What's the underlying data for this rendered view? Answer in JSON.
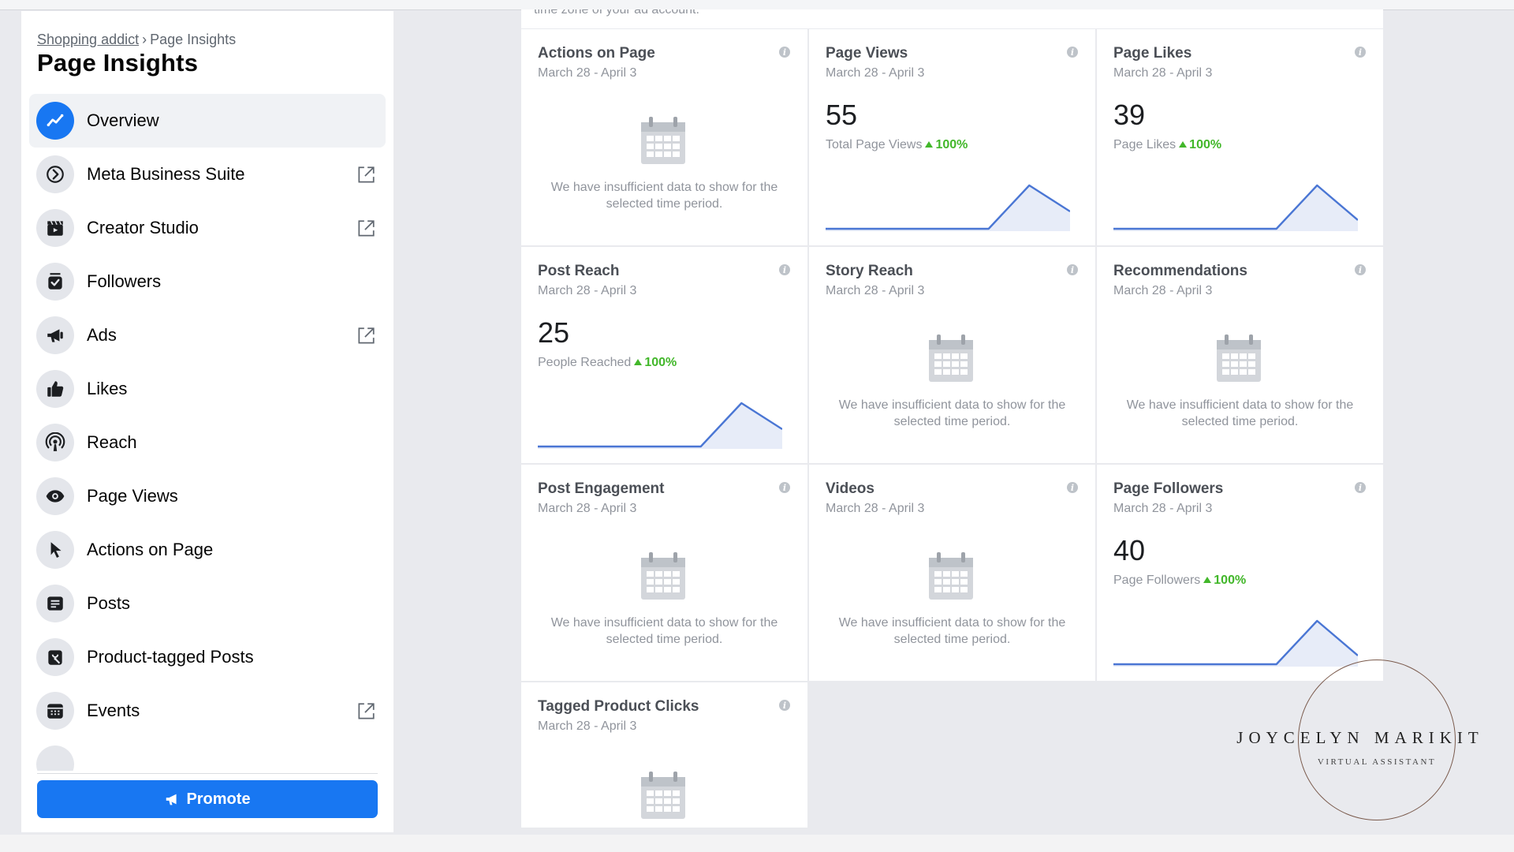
{
  "breadcrumb": {
    "parent": "Shopping addict",
    "separator": "›",
    "current": "Page Insights"
  },
  "page_title": "Page Insights",
  "sidebar": {
    "items": [
      {
        "label": "Overview",
        "icon": "chart-line-icon",
        "active": true,
        "external": false
      },
      {
        "label": "Meta Business Suite",
        "icon": "meta-business-suite-icon",
        "active": false,
        "external": true
      },
      {
        "label": "Creator Studio",
        "icon": "clapperboard-icon",
        "active": false,
        "external": true
      },
      {
        "label": "Followers",
        "icon": "followers-icon",
        "active": false,
        "external": false
      },
      {
        "label": "Ads",
        "icon": "megaphone-icon",
        "active": false,
        "external": true
      },
      {
        "label": "Likes",
        "icon": "thumbs-up-icon",
        "active": false,
        "external": false
      },
      {
        "label": "Reach",
        "icon": "broadcast-icon",
        "active": false,
        "external": false
      },
      {
        "label": "Page Views",
        "icon": "eye-icon",
        "active": false,
        "external": false
      },
      {
        "label": "Actions on Page",
        "icon": "cursor-icon",
        "active": false,
        "external": false
      },
      {
        "label": "Posts",
        "icon": "posts-icon",
        "active": false,
        "external": false
      },
      {
        "label": "Product-tagged Posts",
        "icon": "shopping-bag-icon",
        "active": false,
        "external": false
      },
      {
        "label": "Events",
        "icon": "calendar-icon",
        "active": false,
        "external": true
      }
    ],
    "promote_label": "Promote"
  },
  "top_strip_text": "time zone of your ad account.",
  "date_range": "March 28 - April 3",
  "nodata_text": "We have insufficient data to show for the selected time period.",
  "cards": [
    {
      "title": "Actions on Page",
      "date": "March 28 - April 3",
      "has_data": false
    },
    {
      "title": "Page Views",
      "date": "March 28 - April 3",
      "has_data": true,
      "value": "55",
      "metric": "Total Page Views",
      "delta": "100%",
      "trend": [
        0,
        0,
        0,
        0,
        0,
        1,
        0.4
      ]
    },
    {
      "title": "Page Likes",
      "date": "March 28 - April 3",
      "has_data": true,
      "value": "39",
      "metric": "Page Likes",
      "delta": "100%",
      "trend": [
        0,
        0,
        0,
        0,
        0,
        1,
        0.2
      ]
    },
    {
      "title": "Post Reach",
      "date": "March 28 - April 3",
      "has_data": true,
      "value": "25",
      "metric": "People Reached",
      "delta": "100%",
      "trend": [
        0,
        0,
        0,
        0,
        0,
        1,
        0.4
      ]
    },
    {
      "title": "Story Reach",
      "date": "March 28 - April 3",
      "has_data": false
    },
    {
      "title": "Recommendations",
      "date": "March 28 - April 3",
      "has_data": false
    },
    {
      "title": "Post Engagement",
      "date": "March 28 - April 3",
      "has_data": false
    },
    {
      "title": "Videos",
      "date": "March 28 - April 3",
      "has_data": false
    },
    {
      "title": "Page Followers",
      "date": "March 28 - April 3",
      "has_data": true,
      "value": "40",
      "metric": "Page Followers",
      "delta": "100%",
      "trend": [
        0,
        0,
        0,
        0,
        0,
        1,
        0.2
      ]
    },
    {
      "title": "Tagged Product Clicks",
      "date": "March 28 - April 3",
      "has_data": false
    }
  ],
  "watermark": {
    "name": "JOYCELYN MARIKIT",
    "subtitle": "VIRTUAL ASSISTANT"
  },
  "colors": {
    "accent": "#1877f2",
    "positive": "#42b72a",
    "spark_line": "#4a76d4",
    "spark_fill": "#e7ecf8"
  }
}
